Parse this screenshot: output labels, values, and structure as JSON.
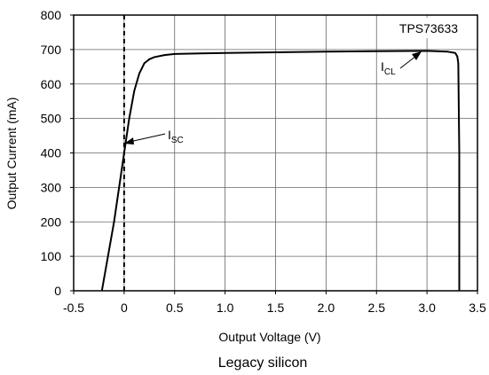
{
  "chart_data": {
    "type": "line",
    "title": "",
    "series_label": "TPS73633",
    "caption": "Legacy silicon",
    "xlabel": "Output Voltage (V)",
    "ylabel": "Output Current (mA)",
    "xlim": [
      -0.5,
      3.5
    ],
    "ylim": [
      0,
      800
    ],
    "xticks": [
      "-0.5",
      "0",
      "0.5",
      "1.0",
      "1.5",
      "2.0",
      "2.5",
      "3.0",
      "3.5"
    ],
    "yticks": [
      "0",
      "100",
      "200",
      "300",
      "400",
      "500",
      "600",
      "700",
      "800"
    ],
    "grid": true,
    "series": [
      {
        "x": [
          -0.22,
          -0.1,
          0.0,
          0.05,
          0.1,
          0.15,
          0.2,
          0.25,
          0.3,
          0.4,
          0.5,
          0.75,
          1.0,
          1.5,
          2.0,
          2.5,
          3.0,
          3.2,
          3.28,
          3.3,
          3.31,
          3.32,
          3.32
        ],
        "y": [
          0,
          200,
          400,
          500,
          580,
          630,
          660,
          672,
          678,
          684,
          687,
          689,
          690,
          692,
          694,
          695,
          696,
          694,
          690,
          680,
          660,
          400,
          0
        ]
      }
    ],
    "reference_line": {
      "x": 0,
      "style": "dashed"
    },
    "annotations": [
      {
        "main": "I",
        "sub": "SC",
        "points_to": [
          0.0,
          415
        ]
      },
      {
        "main": "I",
        "sub": "CL",
        "points_to": [
          3.0,
          698
        ]
      }
    ]
  }
}
